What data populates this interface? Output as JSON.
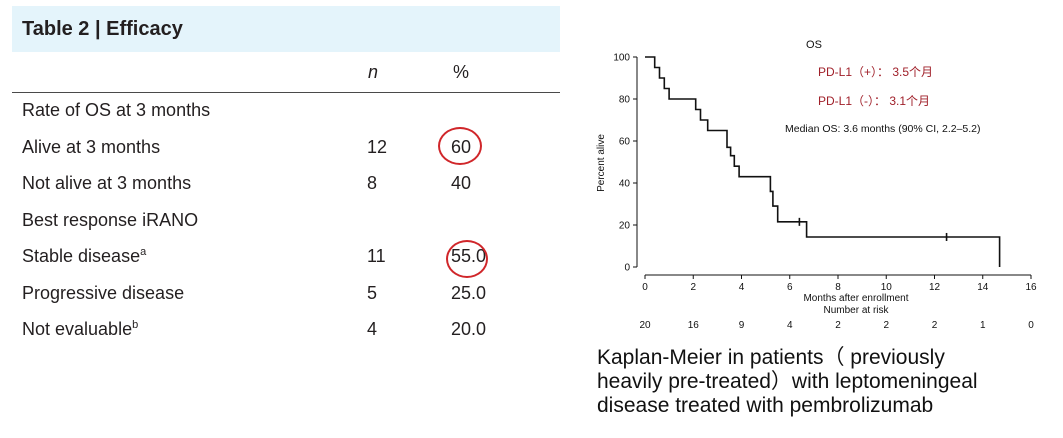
{
  "table": {
    "title": "Table 2 | Efficacy",
    "col_n": "n",
    "col_pct": "%",
    "rows": [
      {
        "label": "Rate of OS at 3 months",
        "sup": "",
        "n": "",
        "pct": ""
      },
      {
        "label": "Alive at 3 months",
        "sup": "",
        "n": "12",
        "pct": "60"
      },
      {
        "label": "Not alive at 3 months",
        "sup": "",
        "n": "8",
        "pct": "40"
      },
      {
        "label": "Best response iRANO",
        "sup": "",
        "n": "",
        "pct": ""
      },
      {
        "label": "Stable disease",
        "sup": "a",
        "n": "11",
        "pct": "55.0"
      },
      {
        "label": "Progressive disease",
        "sup": "",
        "n": "5",
        "pct": "25.0"
      },
      {
        "label": "Not evaluable",
        "sup": "b",
        "n": "4",
        "pct": "20.0"
      }
    ],
    "highlight_color": "#d0262a"
  },
  "chart_data": {
    "type": "line",
    "step": true,
    "title": "OS",
    "annotations": [
      "PD-L1（+）：  3.5个月",
      "PD-L1（-）：  3.1个月",
      "Median OS: 3.6 months (90% CI, 2.2–5.2)"
    ],
    "annotation_color": "#a0202a",
    "xlabel": "Months after enrollment",
    "ylabel": "Percent alive",
    "xlim": [
      0,
      16
    ],
    "ylim": [
      0,
      100
    ],
    "xticks": [
      0,
      2,
      4,
      6,
      8,
      10,
      12,
      14,
      16
    ],
    "yticks": [
      0,
      20,
      40,
      60,
      80,
      100
    ],
    "series": [
      {
        "x": [
          0,
          0.4,
          0.4,
          0.6,
          0.6,
          0.8,
          0.8,
          1.0,
          1.0,
          2.1,
          2.1,
          2.3,
          2.3,
          2.6,
          2.6,
          3.4,
          3.4,
          3.55,
          3.55,
          3.7,
          3.7,
          3.9,
          3.9,
          5.2,
          5.2,
          5.3,
          5.3,
          5.5,
          5.5,
          6.7,
          6.7,
          14.7,
          14.7
        ],
        "y": [
          100,
          100,
          95,
          95,
          90,
          90,
          85,
          85,
          80,
          80,
          75,
          75,
          70,
          70,
          65,
          65,
          57,
          57,
          53,
          53,
          48,
          48,
          43,
          43,
          36,
          36,
          29,
          29,
          21.5,
          21.5,
          14.3,
          14.3,
          0
        ]
      }
    ],
    "censored": [
      {
        "x": 6.4,
        "y": 21.5
      },
      {
        "x": 12.5,
        "y": 14.3
      }
    ],
    "risk_label": "Number at risk",
    "risk_x": [
      0,
      2,
      4,
      6,
      8,
      10,
      12,
      14,
      16
    ],
    "risk_values": [
      "20",
      "16",
      "9",
      "4",
      "2",
      "2",
      "2",
      "1",
      "0"
    ]
  },
  "caption": {
    "line1": "Kaplan-Meier in patients（ previously",
    "line2": "heavily pre-treated）with leptomeningeal",
    "line3": "disease treated with pembrolizumab"
  }
}
